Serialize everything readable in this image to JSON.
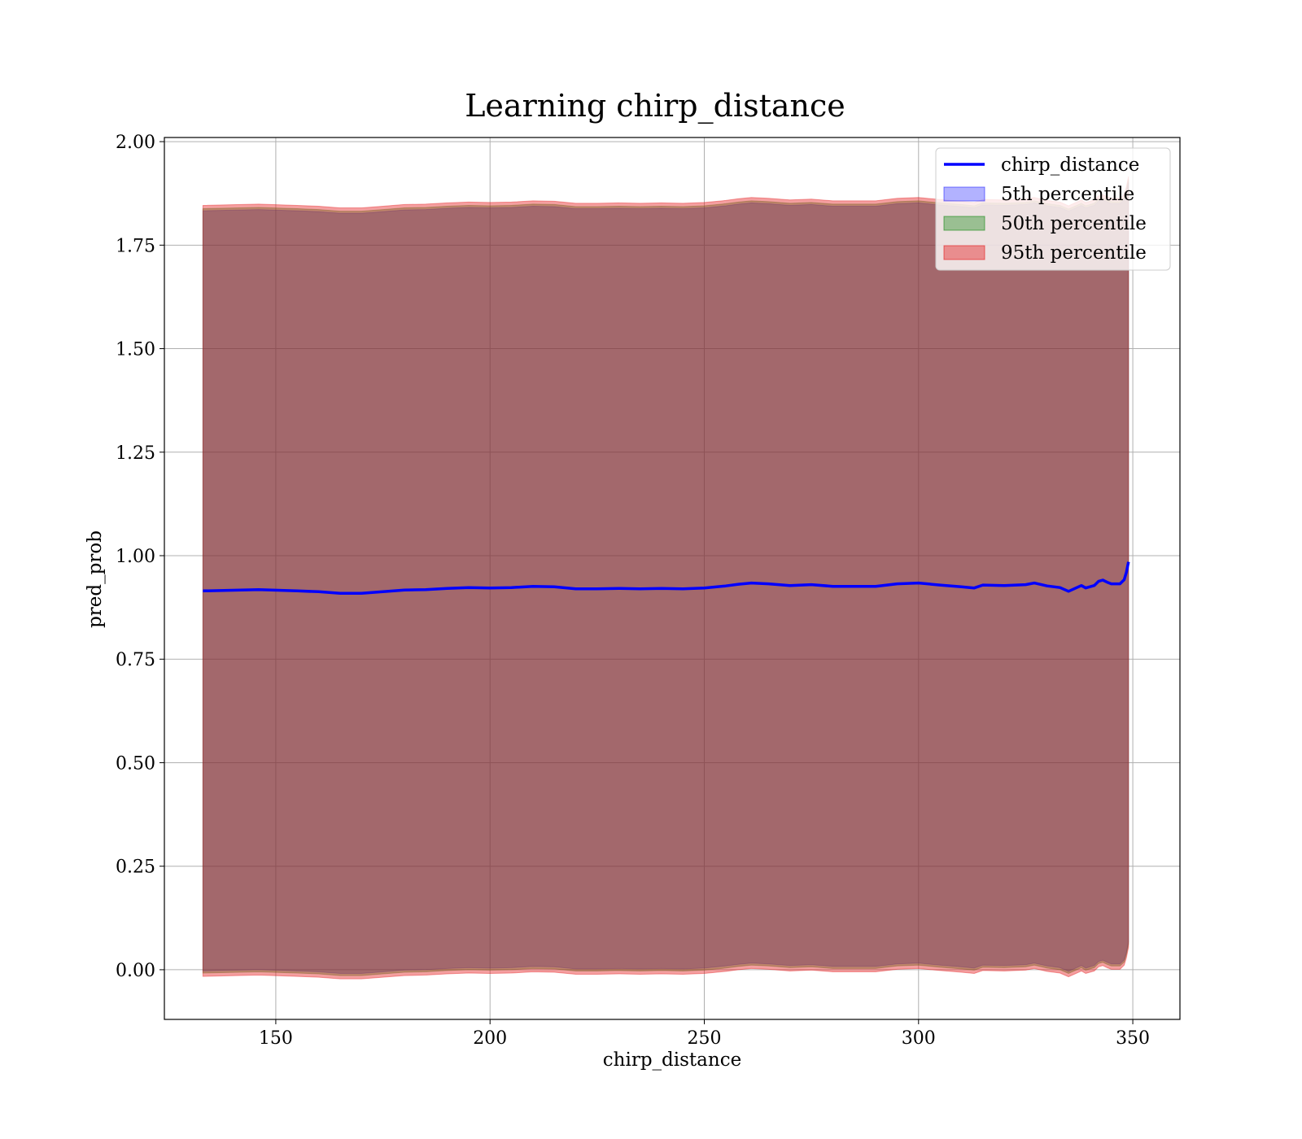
{
  "chart_data": {
    "type": "area",
    "title": "Learning chirp_distance",
    "xlabel": "chirp_distance",
    "ylabel": "pred_prob",
    "xlim": [
      124,
      361
    ],
    "ylim": [
      -0.12,
      2.01
    ],
    "xticks": [
      150,
      200,
      250,
      300,
      350
    ],
    "xtick_labels": [
      "150",
      "200",
      "250",
      "300",
      "350"
    ],
    "yticks": [
      0.0,
      0.25,
      0.5,
      0.75,
      1.0,
      1.25,
      1.5,
      1.75,
      2.0
    ],
    "ytick_labels": [
      "0.00",
      "0.25",
      "0.50",
      "0.75",
      "1.00",
      "1.25",
      "1.50",
      "1.75",
      "2.00"
    ],
    "grid": true,
    "legend_position": "top-right",
    "x": [
      133,
      146,
      155,
      160,
      165,
      170,
      175,
      180,
      185,
      190,
      195,
      200,
      205,
      210,
      215,
      220,
      225,
      230,
      235,
      240,
      245,
      250,
      255,
      258,
      261,
      265,
      270,
      275,
      280,
      285,
      290,
      295,
      300,
      305,
      310,
      313,
      315,
      320,
      325,
      327,
      330,
      333,
      335,
      338,
      339,
      341,
      342,
      343,
      344,
      345,
      347,
      348,
      348.5,
      349
    ],
    "series": [
      {
        "name": "chirp_distance",
        "kind": "line",
        "color": "#0000ff",
        "values": [
          0.915,
          0.918,
          0.915,
          0.913,
          0.909,
          0.909,
          0.913,
          0.917,
          0.918,
          0.921,
          0.923,
          0.922,
          0.923,
          0.926,
          0.925,
          0.92,
          0.92,
          0.921,
          0.92,
          0.921,
          0.92,
          0.922,
          0.927,
          0.931,
          0.934,
          0.932,
          0.928,
          0.93,
          0.926,
          0.926,
          0.926,
          0.932,
          0.934,
          0.929,
          0.925,
          0.922,
          0.929,
          0.928,
          0.93,
          0.934,
          0.927,
          0.923,
          0.914,
          0.928,
          0.922,
          0.928,
          0.938,
          0.941,
          0.936,
          0.932,
          0.932,
          0.942,
          0.96,
          0.985
        ]
      },
      {
        "name": "5th percentile",
        "kind": "band",
        "color": "#0000ff",
        "opacity": 0.3,
        "lower": [
          -0.003,
          0.0,
          -0.003,
          -0.005,
          -0.009,
          -0.009,
          -0.005,
          -0.001,
          0.0,
          0.003,
          0.005,
          0.004,
          0.005,
          0.008,
          0.007,
          0.002,
          0.002,
          0.003,
          0.002,
          0.003,
          0.002,
          0.004,
          0.009,
          0.013,
          0.016,
          0.014,
          0.01,
          0.012,
          0.008,
          0.008,
          0.008,
          0.014,
          0.016,
          0.011,
          0.007,
          0.004,
          0.011,
          0.01,
          0.012,
          0.016,
          0.009,
          0.005,
          -0.004,
          0.01,
          0.004,
          0.01,
          0.02,
          0.023,
          0.018,
          0.014,
          0.014,
          0.024,
          0.042,
          0.067
        ],
        "upper": [
          1.833,
          1.836,
          1.833,
          1.831,
          1.827,
          1.827,
          1.831,
          1.835,
          1.836,
          1.839,
          1.841,
          1.84,
          1.841,
          1.844,
          1.843,
          1.838,
          1.838,
          1.839,
          1.838,
          1.839,
          1.838,
          1.84,
          1.845,
          1.849,
          1.852,
          1.85,
          1.846,
          1.848,
          1.844,
          1.844,
          1.844,
          1.85,
          1.852,
          1.847,
          1.843,
          1.84,
          1.847,
          1.846,
          1.848,
          1.852,
          1.845,
          1.841,
          1.832,
          1.846,
          1.84,
          1.846,
          1.856,
          1.859,
          1.854,
          1.85,
          1.85,
          1.86,
          1.878,
          1.903
        ]
      },
      {
        "name": "50th percentile",
        "kind": "band",
        "color": "#008000",
        "opacity": 0.35,
        "lower": [
          -0.008,
          -0.005,
          -0.008,
          -0.01,
          -0.014,
          -0.014,
          -0.01,
          -0.006,
          -0.005,
          -0.002,
          0.0,
          -0.001,
          0.0,
          0.003,
          0.002,
          -0.003,
          -0.003,
          -0.002,
          -0.003,
          -0.002,
          -0.003,
          -0.001,
          0.004,
          0.008,
          0.011,
          0.009,
          0.005,
          0.007,
          0.003,
          0.003,
          0.003,
          0.009,
          0.011,
          0.006,
          0.002,
          -0.001,
          0.006,
          0.005,
          0.007,
          0.011,
          0.004,
          0.0,
          -0.009,
          0.005,
          -0.001,
          0.005,
          0.015,
          0.018,
          0.013,
          0.009,
          0.009,
          0.019,
          0.037,
          0.062
        ],
        "upper": [
          1.838,
          1.841,
          1.838,
          1.836,
          1.832,
          1.832,
          1.836,
          1.84,
          1.841,
          1.844,
          1.846,
          1.845,
          1.846,
          1.849,
          1.848,
          1.843,
          1.843,
          1.844,
          1.843,
          1.844,
          1.843,
          1.845,
          1.85,
          1.854,
          1.857,
          1.855,
          1.851,
          1.853,
          1.849,
          1.849,
          1.849,
          1.855,
          1.857,
          1.852,
          1.848,
          1.845,
          1.852,
          1.851,
          1.853,
          1.857,
          1.85,
          1.846,
          1.837,
          1.851,
          1.845,
          1.851,
          1.861,
          1.864,
          1.859,
          1.855,
          1.855,
          1.865,
          1.883,
          1.908
        ]
      },
      {
        "name": "95th percentile",
        "kind": "band",
        "color": "#e41a1c",
        "opacity": 0.42,
        "lower": [
          -0.016,
          -0.013,
          -0.016,
          -0.018,
          -0.022,
          -0.022,
          -0.018,
          -0.014,
          -0.013,
          -0.01,
          -0.008,
          -0.009,
          -0.008,
          -0.005,
          -0.006,
          -0.011,
          -0.011,
          -0.01,
          -0.011,
          -0.01,
          -0.011,
          -0.009,
          -0.004,
          0.0,
          0.003,
          0.001,
          -0.003,
          -0.001,
          -0.005,
          -0.005,
          -0.005,
          0.001,
          0.003,
          -0.002,
          -0.006,
          -0.009,
          -0.002,
          -0.003,
          -0.001,
          0.003,
          -0.004,
          -0.008,
          -0.017,
          -0.003,
          -0.009,
          -0.003,
          0.007,
          0.01,
          0.005,
          0.001,
          0.001,
          0.011,
          0.029,
          0.054
        ],
        "upper": [
          1.846,
          1.849,
          1.846,
          1.844,
          1.84,
          1.84,
          1.844,
          1.848,
          1.849,
          1.852,
          1.854,
          1.853,
          1.854,
          1.857,
          1.856,
          1.851,
          1.851,
          1.852,
          1.851,
          1.852,
          1.851,
          1.853,
          1.858,
          1.862,
          1.865,
          1.863,
          1.859,
          1.861,
          1.857,
          1.857,
          1.857,
          1.863,
          1.865,
          1.86,
          1.856,
          1.853,
          1.86,
          1.859,
          1.861,
          1.865,
          1.858,
          1.854,
          1.845,
          1.859,
          1.853,
          1.859,
          1.869,
          1.872,
          1.867,
          1.863,
          1.863,
          1.873,
          1.891,
          1.916
        ]
      }
    ]
  }
}
